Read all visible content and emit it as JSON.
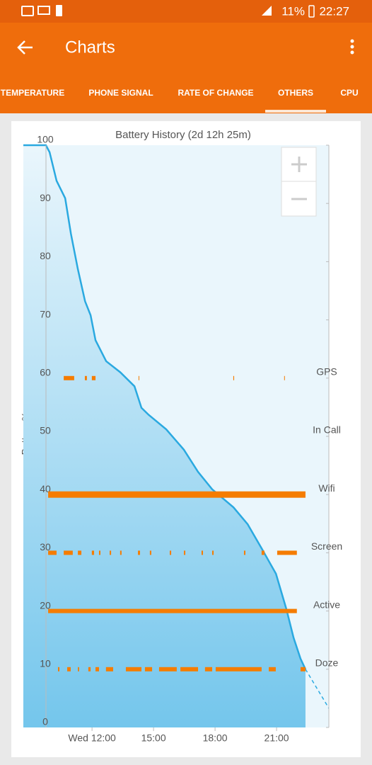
{
  "status_bar": {
    "battery": "11%",
    "time": "22:27"
  },
  "app_bar": {
    "title": "Charts"
  },
  "tabs": {
    "items": [
      "TEMPERATURE",
      "PHONE SIGNAL",
      "RATE OF CHANGE",
      "OTHERS",
      "CPU"
    ],
    "selected": 3
  },
  "chart_data": {
    "type": "area",
    "title": "Battery History (2d 12h 25m)",
    "y_label": "Battery %",
    "xlim": [
      8.65,
      23.55
    ],
    "ylim": [
      0,
      100
    ],
    "xticks": [
      {
        "value": 12,
        "label": "Wed 12:00"
      },
      {
        "value": 15,
        "label": "15:00"
      },
      {
        "value": 18,
        "label": "18:00"
      },
      {
        "value": 21,
        "label": "21:00"
      }
    ],
    "yticks": [
      0,
      10,
      20,
      30,
      40,
      50,
      60,
      70,
      80,
      90,
      100
    ],
    "series": [
      {
        "color": "#2aa9e0",
        "x": [
          8.65,
          9.75,
          9.93,
          10.27,
          10.69,
          10.97,
          11.31,
          11.66,
          11.93,
          12.17,
          12.69,
          13.38,
          14.07,
          14.41,
          14.76,
          15.62,
          16.48,
          17.17,
          17.86,
          18.9,
          19.59,
          20.28,
          20.97,
          21.48,
          21.83,
          22.17,
          22.41
        ],
        "values": [
          100,
          100,
          98.8,
          93.9,
          90.9,
          84.8,
          78.7,
          73.2,
          70.8,
          66.5,
          62.9,
          61,
          58.6,
          54.9,
          53.7,
          51.2,
          47.7,
          43.9,
          40.9,
          37.8,
          34.9,
          30.7,
          26.4,
          20.3,
          15.4,
          11.8,
          10
        ]
      },
      {
        "color": "#2aa9e0",
        "dashed": true,
        "x": [
          22.41,
          23.55
        ],
        "values": [
          10,
          3.3
        ]
      }
    ],
    "state_rows": [
      {
        "name": "GPS",
        "color": "#f57c00",
        "segments": [
          [
            10.62,
            11.13
          ],
          [
            11.65,
            11.75
          ],
          [
            11.99,
            12.17
          ],
          [
            14.27,
            14.3
          ],
          [
            18.89,
            18.93
          ],
          [
            21.37,
            21.4
          ]
        ]
      },
      {
        "name": "In Call",
        "color": "#f57c00",
        "segments": []
      },
      {
        "name": "Wifi",
        "color": "#f57c00",
        "thick": true,
        "segments": [
          [
            9.86,
            22.41
          ]
        ]
      },
      {
        "name": "Screen",
        "color": "#f57c00",
        "segments": [
          [
            9.86,
            10.27
          ],
          [
            10.62,
            11.06
          ],
          [
            11.31,
            11.48
          ],
          [
            11.99,
            12.1
          ],
          [
            12.34,
            12.41
          ],
          [
            12.86,
            12.93
          ],
          [
            13.37,
            13.44
          ],
          [
            14.24,
            14.34
          ],
          [
            14.82,
            14.89
          ],
          [
            15.79,
            15.86
          ],
          [
            16.48,
            16.55
          ],
          [
            17.34,
            17.41
          ],
          [
            17.86,
            17.93
          ],
          [
            19.41,
            19.48
          ],
          [
            20.27,
            20.41
          ],
          [
            21.03,
            21.99
          ]
        ]
      },
      {
        "name": "Active",
        "color": "#f57c00",
        "segments": [
          [
            9.86,
            21.99
          ]
        ]
      },
      {
        "name": "Doze",
        "color": "#f57c00",
        "segments": [
          [
            10.34,
            10.41
          ],
          [
            10.79,
            10.96
          ],
          [
            11.31,
            11.37
          ],
          [
            11.82,
            11.93
          ],
          [
            12.17,
            12.34
          ],
          [
            12.68,
            13.03
          ],
          [
            13.65,
            14.41
          ],
          [
            14.58,
            14.93
          ],
          [
            15.27,
            16.13
          ],
          [
            16.31,
            17.17
          ],
          [
            17.51,
            17.86
          ],
          [
            18.03,
            20.27
          ],
          [
            20.62,
            20.96
          ],
          [
            22.17,
            22.41
          ]
        ]
      }
    ]
  }
}
